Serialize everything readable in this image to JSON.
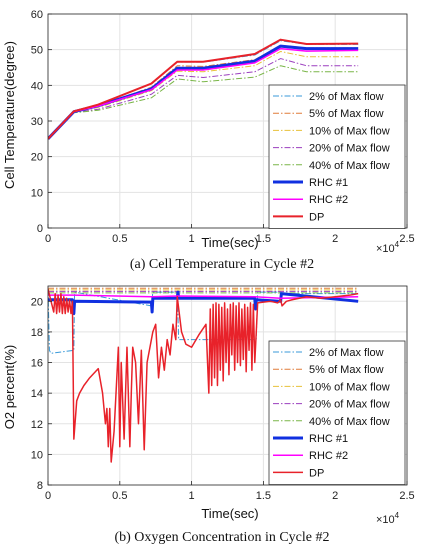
{
  "chart_data": [
    {
      "type": "line",
      "caption": "(a) Cell Temperature in Cycle #2",
      "xlabel": "Time(sec)",
      "ylabel": "Cell Temperature(degree)",
      "x_multiplier": {
        "base": "×10",
        "exp": "4"
      },
      "xlim": [
        0,
        25000
      ],
      "ylim": [
        0,
        60
      ],
      "xticks": [
        0,
        0.5,
        1,
        1.5,
        2,
        2.5
      ],
      "xtick_labels": [
        "0",
        "0.5",
        "1",
        "1.5",
        "2",
        "2.5"
      ],
      "yticks": [
        0,
        10,
        20,
        30,
        40,
        50,
        60
      ],
      "ytick_labels": [
        "0",
        "10",
        "20",
        "30",
        "40",
        "50",
        "60"
      ],
      "grid": true,
      "legend_position": "inside-right",
      "series": [
        {
          "name": "2% of Max flow",
          "color": "#3a9ad9",
          "style": "dashdot",
          "width": 1,
          "x": [
            0,
            1800,
            3500,
            7200,
            9000,
            10800,
            14400,
            16200,
            18000,
            21600
          ],
          "y": [
            25,
            32.6,
            34.5,
            40.5,
            46.5,
            46.5,
            48.5,
            52.5,
            51.5,
            51.5
          ]
        },
        {
          "name": "5% of Max flow",
          "color": "#e07b39",
          "style": "dashdot",
          "width": 1,
          "x": [
            0,
            1800,
            3500,
            7200,
            9000,
            10800,
            14400,
            16200,
            18000,
            21600
          ],
          "y": [
            25,
            32.6,
            34.2,
            39.5,
            45.5,
            45.3,
            47.2,
            51.2,
            50.5,
            50.5
          ]
        },
        {
          "name": "10% of Max flow",
          "color": "#e8c13a",
          "style": "dashdot",
          "width": 1,
          "x": [
            0,
            1800,
            3500,
            7200,
            9000,
            10800,
            14400,
            16200,
            18000,
            21600
          ],
          "y": [
            25,
            32.5,
            33.8,
            38.5,
            44.0,
            43.8,
            45.5,
            49.5,
            48.0,
            48.0
          ]
        },
        {
          "name": "20% of Max flow",
          "color": "#9b3fbf",
          "style": "dashdot",
          "width": 1,
          "x": [
            0,
            1800,
            3500,
            7200,
            9000,
            10800,
            14400,
            16200,
            18000,
            21600
          ],
          "y": [
            25,
            32.4,
            33.3,
            37.5,
            42.8,
            42.2,
            43.8,
            47.5,
            45.5,
            45.5
          ]
        },
        {
          "name": "40% of Max flow",
          "color": "#7ab648",
          "style": "dashdot",
          "width": 1,
          "x": [
            0,
            1800,
            3500,
            7200,
            9000,
            10800,
            14400,
            16200,
            18000,
            21600
          ],
          "y": [
            25,
            32.3,
            33.0,
            36.5,
            41.8,
            41.0,
            42.3,
            45.5,
            43.8,
            43.8
          ]
        },
        {
          "name": "RHC #1",
          "color": "#1030e0",
          "style": "solid",
          "width": 3,
          "x": [
            0,
            1800,
            3500,
            7200,
            9000,
            10800,
            14400,
            16200,
            18000,
            21600
          ],
          "y": [
            25,
            32.6,
            34.3,
            39.0,
            44.8,
            44.8,
            46.8,
            51.0,
            50.3,
            50.3
          ]
        },
        {
          "name": "RHC #2",
          "color": "#ff00ff",
          "style": "solid",
          "width": 1.5,
          "x": [
            0,
            1800,
            3500,
            7200,
            9000,
            10800,
            14400,
            16200,
            18000,
            21600
          ],
          "y": [
            25,
            32.6,
            34.2,
            38.8,
            44.3,
            44.3,
            46.3,
            50.3,
            49.6,
            49.8
          ]
        },
        {
          "name": "DP",
          "color": "#e8222a",
          "style": "solid",
          "width": 2,
          "x": [
            0,
            1800,
            3500,
            7200,
            9000,
            10800,
            14400,
            16200,
            18000,
            21600
          ],
          "y": [
            25,
            32.7,
            34.6,
            40.5,
            46.6,
            46.6,
            48.8,
            52.8,
            51.6,
            51.7
          ]
        }
      ]
    },
    {
      "type": "line",
      "caption": "(b) Oxygen Concentration in Cycle #2",
      "xlabel": "Time(sec)",
      "ylabel": "O2 percent(%)",
      "x_multiplier": {
        "base": "×10",
        "exp": "4"
      },
      "xlim": [
        0,
        25000
      ],
      "ylim": [
        8,
        21
      ],
      "xticks": [
        0,
        0.5,
        1,
        1.5,
        2,
        2.5
      ],
      "xtick_labels": [
        "0",
        "0.5",
        "1",
        "1.5",
        "2",
        "2.5"
      ],
      "yticks": [
        8,
        10,
        12,
        14,
        16,
        18,
        20
      ],
      "ytick_labels": [
        "8",
        "10",
        "12",
        "14",
        "16",
        "18",
        "20"
      ],
      "grid": true,
      "legend_position": "inside-right",
      "series": [
        {
          "name": "2% of Max flow",
          "color": "#3a9ad9",
          "style": "dashdot",
          "width": 1,
          "x": [
            0,
            100,
            200,
            1800,
            1850,
            7200,
            7300,
            9000,
            9100,
            14500,
            14600,
            16200,
            16300,
            21600
          ],
          "y": [
            20.8,
            16.8,
            16.6,
            16.8,
            20.6,
            19.7,
            20.6,
            20.6,
            17.5,
            17.5,
            20.6,
            20.6,
            20.5,
            20.5
          ]
        },
        {
          "name": "5% of Max flow",
          "color": "#e07b39",
          "style": "dashdot",
          "width": 1,
          "x": [
            0,
            21600
          ],
          "y": [
            20.85,
            20.85
          ]
        },
        {
          "name": "10% of Max flow",
          "color": "#e8c13a",
          "style": "dashdot",
          "width": 1,
          "x": [
            0,
            21600
          ],
          "y": [
            20.75,
            20.75
          ]
        },
        {
          "name": "20% of Max flow",
          "color": "#9b3fbf",
          "style": "dashdot",
          "width": 1,
          "x": [
            0,
            21600
          ],
          "y": [
            20.65,
            20.65
          ]
        },
        {
          "name": "40% of Max flow",
          "color": "#7ab648",
          "style": "dashdot",
          "width": 1,
          "x": [
            0,
            21600
          ],
          "y": [
            20.55,
            20.55
          ]
        },
        {
          "name": "RHC #1",
          "color": "#1030e0",
          "style": "solid",
          "width": 3,
          "x": [
            0,
            1700,
            1800,
            1850,
            7200,
            7250,
            7300,
            9000,
            9050,
            9100,
            14400,
            14450,
            14500,
            16200,
            16250,
            21600
          ],
          "y": [
            20.1,
            20.1,
            19.2,
            20.0,
            19.95,
            19.3,
            20.2,
            20.2,
            20.6,
            20.2,
            20.2,
            19.5,
            20.1,
            20.0,
            20.5,
            20.0
          ]
        },
        {
          "name": "RHC #2",
          "color": "#ff00ff",
          "style": "solid",
          "width": 1.5,
          "x": [
            0,
            1800,
            7200,
            9000,
            14400,
            16200,
            21600
          ],
          "y": [
            20.4,
            20.4,
            20.3,
            20.35,
            20.3,
            20.2,
            20.3
          ]
        },
        {
          "name": "DP",
          "color": "#e8222a",
          "style": "solid",
          "width": 1.5,
          "x": [
            0,
            400,
            500,
            600,
            700,
            800,
            900,
            1000,
            1100,
            1200,
            1300,
            1400,
            1500,
            1600,
            1700,
            1800,
            2000,
            2200,
            2500,
            2900,
            3200,
            3500,
            3800,
            4000,
            4100,
            4200,
            4300,
            4400,
            4600,
            4900,
            5000,
            5100,
            5300,
            5500,
            5700,
            5800,
            5900,
            6100,
            6300,
            6500,
            6700,
            6900,
            7100,
            7300,
            7500,
            7700,
            7900,
            8100,
            8300,
            8500,
            8700,
            8900,
            9000,
            9300,
            9600,
            10000,
            10500,
            11000,
            11200,
            11300,
            11400,
            11500,
            11600,
            11700,
            11800,
            11900,
            12000,
            12100,
            12200,
            12300,
            12400,
            12500,
            12600,
            12700,
            12800,
            12900,
            13000,
            13100,
            13200,
            13300,
            13400,
            13500,
            13600,
            13700,
            13800,
            13900,
            14000,
            14100,
            14200,
            14300,
            14400,
            14600,
            15000,
            15500,
            16000,
            16200,
            16300,
            16600,
            17000,
            17500,
            18000,
            19000,
            20000,
            21000,
            21600
          ],
          "y": [
            20.8,
            19.3,
            20.5,
            19.2,
            20.4,
            19.3,
            20.5,
            19.2,
            20.3,
            19.2,
            20.2,
            19.3,
            20.1,
            19.2,
            20.0,
            11.0,
            13.5,
            14.0,
            14.5,
            15.0,
            15.3,
            15.6,
            14.0,
            12.0,
            13.0,
            10.5,
            13.0,
            9.5,
            11.5,
            17.0,
            10.5,
            16.0,
            11.0,
            17.0,
            10.5,
            14.0,
            17.0,
            16.0,
            12.0,
            16.8,
            10.3,
            16.0,
            17.0,
            18.0,
            18.5,
            15.0,
            17.0,
            15.5,
            17.5,
            16.5,
            18.5,
            17.5,
            20.3,
            18.0,
            17.2,
            17.0,
            17.8,
            18.5,
            14.0,
            19.5,
            14.5,
            19.8,
            15.0,
            19.9,
            14.5,
            19.8,
            15.5,
            19.6,
            14.8,
            19.9,
            16.0,
            19.5,
            15.2,
            19.8,
            16.5,
            19.9,
            15.5,
            19.7,
            16.0,
            19.9,
            15.8,
            19.5,
            16.2,
            19.8,
            15.4,
            19.6,
            16.8,
            19.9,
            15.5,
            19.8,
            16.0,
            19.9,
            19.95,
            20.0,
            19.9,
            20.1,
            19.7,
            20.0,
            20.1,
            20.2,
            20.3,
            20.2,
            20.3,
            20.4,
            20.5
          ]
        }
      ]
    }
  ]
}
